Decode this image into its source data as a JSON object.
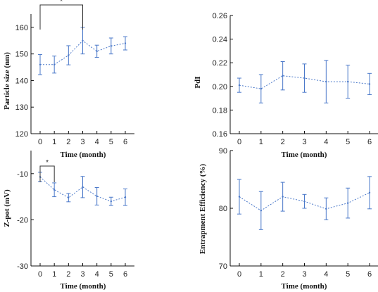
{
  "chart_data": [
    {
      "type": "line",
      "xlabel": "Time (month)",
      "ylabel": "Particle size (nm)",
      "x": [
        0,
        1,
        2,
        3,
        4,
        5,
        6
      ],
      "xticks": [
        "0",
        "1",
        "2",
        "3",
        "4",
        "5",
        "6"
      ],
      "ylim": [
        120,
        165
      ],
      "yticks": [
        "120",
        "130",
        "140",
        "150",
        "160"
      ],
      "series": [
        {
          "values": [
            146,
            146,
            149.5,
            155,
            151,
            153,
            154
          ],
          "errors": [
            3.8,
            3.2,
            3.6,
            5,
            2.3,
            3,
            2.5
          ]
        }
      ],
      "annotations": [
        {
          "text": "*",
          "from": 0,
          "to": 3
        }
      ]
    },
    {
      "type": "line",
      "xlabel": "Time (month)",
      "ylabel": "PdI",
      "x": [
        0,
        1,
        2,
        3,
        4,
        5,
        6
      ],
      "xticks": [
        "0",
        "1",
        "2",
        "3",
        "4",
        "5",
        "6"
      ],
      "ylim": [
        0.16,
        0.26
      ],
      "yticks": [
        "0.16",
        "0.18",
        "0.20",
        "0.22",
        "0.24",
        "0.26"
      ],
      "series": [
        {
          "values": [
            0.201,
            0.198,
            0.209,
            0.207,
            0.204,
            0.204,
            0.202
          ],
          "errors": [
            0.006,
            0.012,
            0.012,
            0.012,
            0.018,
            0.014,
            0.009
          ]
        }
      ],
      "annotations": []
    },
    {
      "type": "line",
      "xlabel": "Time (month)",
      "ylabel": "Z-pot (mV)",
      "x": [
        0,
        1,
        2,
        3,
        4,
        5,
        6
      ],
      "xticks": [
        "0",
        "1",
        "2",
        "3",
        "4",
        "5",
        "6"
      ],
      "ylim": [
        -30,
        -5
      ],
      "yticks": [
        "-30",
        "-20",
        "-10"
      ],
      "series": [
        {
          "values": [
            -10.7,
            -13.5,
            -15.2,
            -12.9,
            -14.9,
            -16,
            -15.1
          ],
          "errors": [
            1,
            1.5,
            0.9,
            2.3,
            1.9,
            0.9,
            1.8
          ]
        }
      ],
      "annotations": [
        {
          "text": "*",
          "from": 0,
          "to": 1
        }
      ]
    },
    {
      "type": "line",
      "xlabel": "Time (month)",
      "ylabel": "Entrapment Efficiency (%)",
      "x": [
        0,
        1,
        2,
        3,
        4,
        5,
        6
      ],
      "xticks": [
        "0",
        "1",
        "2",
        "3",
        "4",
        "5",
        "6"
      ],
      "ylim": [
        70,
        90
      ],
      "yticks": [
        "70",
        "80",
        "90"
      ],
      "series": [
        {
          "values": [
            82,
            79.6,
            82,
            81.2,
            79.9,
            80.9,
            82.7
          ],
          "errors": [
            3,
            3.3,
            2.5,
            1.2,
            1.9,
            2.6,
            2.8
          ]
        }
      ],
      "annotations": []
    }
  ],
  "colors": {
    "series": "#4a78c9",
    "axis": "#111111"
  }
}
